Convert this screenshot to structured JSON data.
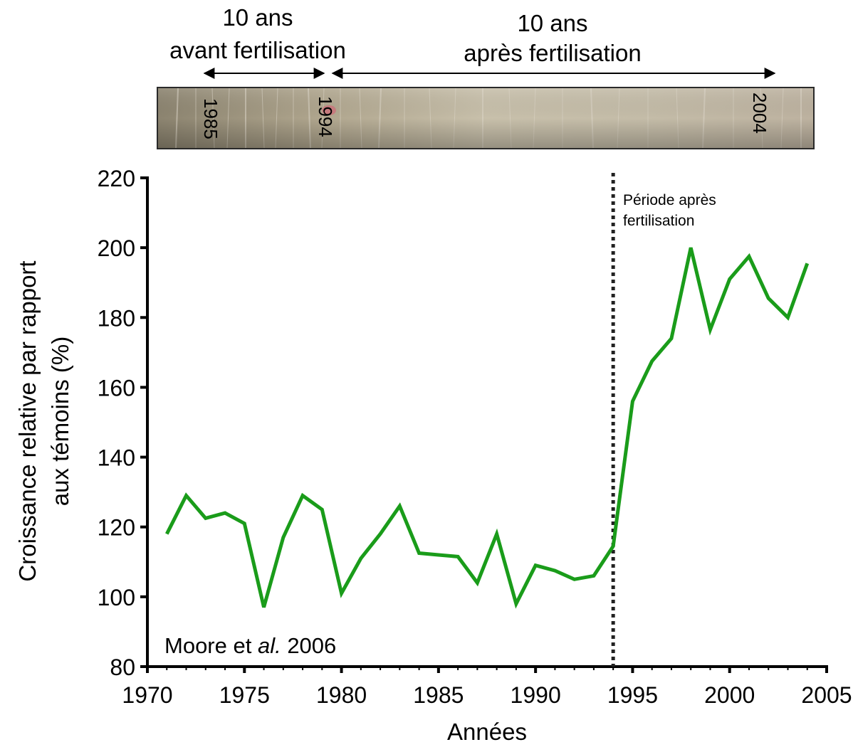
{
  "header": {
    "before_label_line1": "10 ans",
    "before_label_line2": "avant fertilisation",
    "after_label_line1": "10 ans",
    "after_label_line2": "après fertilisation"
  },
  "core": {
    "ring_labels": [
      "1985",
      "1994",
      "2004"
    ],
    "colors": {
      "wood_base": "#a09680",
      "ring_line": "#ddd6c8",
      "highlight": "#d46a78"
    }
  },
  "annotation": {
    "period_line1": "Période après",
    "period_line2": "fertilisation",
    "citation_prefix": "Moore et ",
    "citation_italic": "al.",
    "citation_suffix": " 2006"
  },
  "chart_data": {
    "type": "line",
    "xlabel": "Années",
    "ylabel_line1": "Croissance relative par rapport",
    "ylabel_line2": "aux témoins (%)",
    "xlim": [
      1970,
      2005
    ],
    "ylim": [
      80,
      220
    ],
    "xticks": [
      1970,
      1975,
      1980,
      1985,
      1990,
      1995,
      2000,
      2005
    ],
    "yticks": [
      80,
      100,
      120,
      140,
      160,
      180,
      200,
      220
    ],
    "vline_x": 1994,
    "line_color": "#1a9c1a",
    "series": [
      {
        "x": [
          1971,
          1972,
          1973,
          1974,
          1975,
          1976,
          1977,
          1978,
          1979,
          1980,
          1981,
          1982,
          1983,
          1984,
          1985,
          1986,
          1987,
          1988,
          1989,
          1990,
          1991,
          1992,
          1993,
          1994,
          1995,
          1996,
          1997,
          1998,
          1999,
          2000,
          2001,
          2002,
          2003,
          2004
        ],
        "values": [
          118,
          129,
          122.5,
          124,
          121,
          97,
          117,
          129,
          125,
          101,
          111,
          118,
          126,
          112.5,
          112,
          111.5,
          104,
          118,
          98,
          109,
          107.5,
          105,
          106,
          114.5,
          156,
          167.5,
          174,
          200,
          176.5,
          191,
          197.5,
          185.5,
          180,
          195.5
        ]
      }
    ]
  }
}
